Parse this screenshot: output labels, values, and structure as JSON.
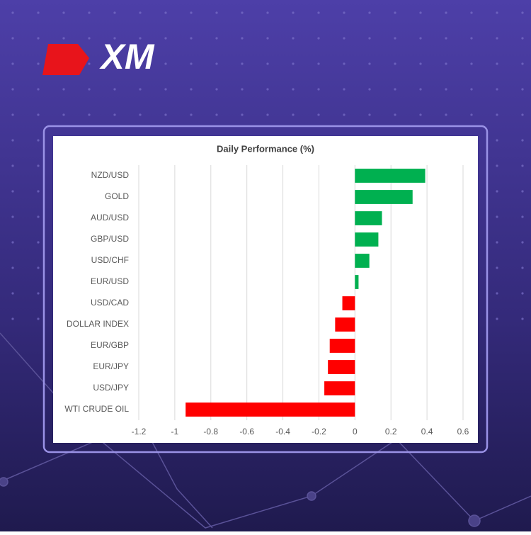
{
  "logo": "XM",
  "chart_data": {
    "type": "bar",
    "orientation": "horizontal",
    "title": "Daily Performance (%)",
    "categories": [
      "NZD/USD",
      "GOLD",
      "AUD/USD",
      "GBP/USD",
      "USD/CHF",
      "EUR/USD",
      "USD/CAD",
      "DOLLAR INDEX",
      "EUR/GBP",
      "EUR/JPY",
      "USD/JPY",
      "WTI CRUDE OIL"
    ],
    "values": [
      0.39,
      0.32,
      0.15,
      0.13,
      0.08,
      0.02,
      -0.07,
      -0.11,
      -0.14,
      -0.15,
      -0.17,
      -0.94
    ],
    "positive_color": "#00b050",
    "negative_color": "#ff0000",
    "xlim": [
      -1.2,
      0.6
    ],
    "xticks": [
      -1.2,
      -1,
      -0.8,
      -0.6,
      -0.4,
      -0.2,
      0,
      0.2,
      0.4,
      0.6
    ],
    "grid": true
  }
}
